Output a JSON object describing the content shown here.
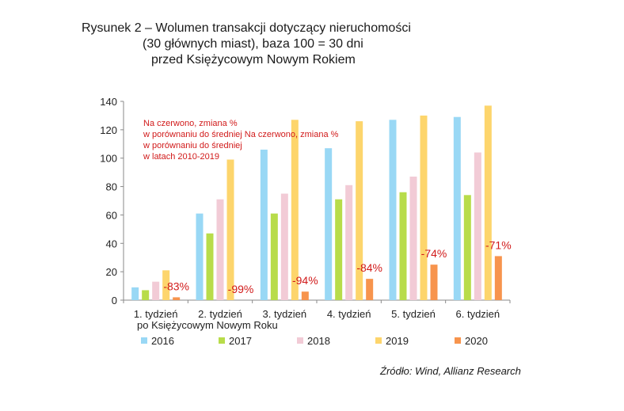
{
  "title_lines": [
    "Rysunek 2 – Wolumen transakcji dotyczący nieruchomości",
    "(30 głównych miast), baza 100 = 30 dni",
    "przed Księżycowym Nowym Rokiem"
  ],
  "source": "Źródło: Wind, Allianz Research",
  "annotation_lines": [
    "Na czerwono, zmiana %",
    "w porównaniu do średniej Na czerwono, zmiana %",
    "w porównaniu do średniej",
    "w latach 2010-2019"
  ],
  "chart_data": {
    "type": "bar",
    "categories": [
      "1. tydzień",
      "2. tydzień",
      "3. tydzień",
      "4. tydzień",
      "5. tydzień",
      "6. tydzień"
    ],
    "category_sublabel": "po Księżycowym Nowym Roku",
    "ylim": [
      0,
      140
    ],
    "yticks": [
      "0",
      "20",
      "40",
      "60",
      "80",
      "100",
      "120",
      "140"
    ],
    "grid": false,
    "legend_position": "bottom",
    "series": [
      {
        "name": "2016",
        "color": "#99d8f5",
        "values": [
          9,
          61,
          106,
          107,
          127,
          129
        ]
      },
      {
        "name": "2017",
        "color": "#b8dc4a",
        "values": [
          7,
          47,
          61,
          71,
          76,
          74
        ]
      },
      {
        "name": "2018",
        "color": "#f2cbd6",
        "values": [
          13,
          71,
          75,
          81,
          87,
          104
        ]
      },
      {
        "name": "2019",
        "color": "#fdd56c",
        "values": [
          21,
          99,
          127,
          126,
          130,
          137
        ]
      },
      {
        "name": "2020",
        "color": "#f7944d",
        "values": [
          2,
          0,
          6,
          15,
          25,
          31
        ]
      }
    ],
    "data_labels": [
      "-83%",
      "-99%",
      "-94%",
      "-84%",
      "-74%",
      "-71%"
    ]
  }
}
